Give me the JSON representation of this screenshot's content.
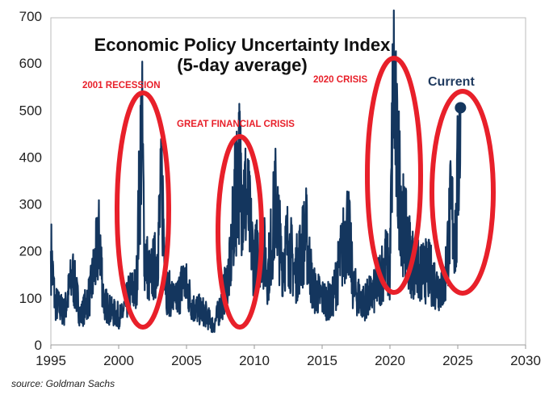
{
  "chart_data": {
    "type": "line",
    "title": "Economic Policy Uncertainty Index",
    "subtitle": "(5-day average)",
    "xlim": [
      1995,
      2030
    ],
    "ylim": [
      0,
      700
    ],
    "x_ticks": [
      "1995",
      "2000",
      "2005",
      "2010",
      "2015",
      "2020",
      "2025",
      "2030"
    ],
    "y_ticks": [
      "0",
      "100",
      "200",
      "300",
      "400",
      "500",
      "600",
      "700"
    ],
    "grid": false,
    "series_color": "#14365e",
    "highlight_color": "#e8202a",
    "points": [
      [
        1995.0,
        200
      ],
      [
        1995.3,
        90
      ],
      [
        1996.0,
        70
      ],
      [
        1996.6,
        150
      ],
      [
        1997.2,
        60
      ],
      [
        1997.9,
        110
      ],
      [
        1998.6,
        230
      ],
      [
        1998.9,
        90
      ],
      [
        1999.5,
        70
      ],
      [
        2000.2,
        60
      ],
      [
        2000.8,
        110
      ],
      [
        2001.3,
        120
      ],
      [
        2001.7,
        485
      ],
      [
        2001.9,
        200
      ],
      [
        2002.3,
        140
      ],
      [
        2002.8,
        180
      ],
      [
        2003.2,
        340
      ],
      [
        2003.5,
        120
      ],
      [
        2004.2,
        90
      ],
      [
        2004.8,
        140
      ],
      [
        2005.5,
        80
      ],
      [
        2006.3,
        70
      ],
      [
        2007.0,
        40
      ],
      [
        2007.6,
        90
      ],
      [
        2008.2,
        160
      ],
      [
        2008.8,
        390
      ],
      [
        2009.1,
        340
      ],
      [
        2009.5,
        300
      ],
      [
        2010.0,
        170
      ],
      [
        2010.5,
        230
      ],
      [
        2011.0,
        150
      ],
      [
        2011.6,
        310
      ],
      [
        2012.0,
        180
      ],
      [
        2012.5,
        220
      ],
      [
        2013.0,
        150
      ],
      [
        2013.8,
        240
      ],
      [
        2014.3,
        120
      ],
      [
        2015.0,
        100
      ],
      [
        2015.7,
        90
      ],
      [
        2016.5,
        200
      ],
      [
        2016.9,
        260
      ],
      [
        2017.3,
        120
      ],
      [
        2018.0,
        90
      ],
      [
        2018.8,
        110
      ],
      [
        2019.7,
        180
      ],
      [
        2020.0,
        150
      ],
      [
        2020.25,
        585
      ],
      [
        2020.5,
        400
      ],
      [
        2020.7,
        350
      ],
      [
        2021.0,
        250
      ],
      [
        2021.6,
        180
      ],
      [
        2022.2,
        150
      ],
      [
        2022.8,
        160
      ],
      [
        2023.4,
        130
      ],
      [
        2024.0,
        120
      ],
      [
        2024.5,
        290
      ],
      [
        2024.9,
        220
      ],
      [
        2025.0,
        370
      ],
      [
        2025.2,
        505
      ]
    ],
    "current": {
      "x": 2025.2,
      "y": 505,
      "label": "Current"
    },
    "annotations": [
      "2001 RECESSION",
      "GREAT FINANCIAL CRISIS",
      "2020 CRISIS"
    ]
  },
  "source": "source: Goldman Sachs"
}
